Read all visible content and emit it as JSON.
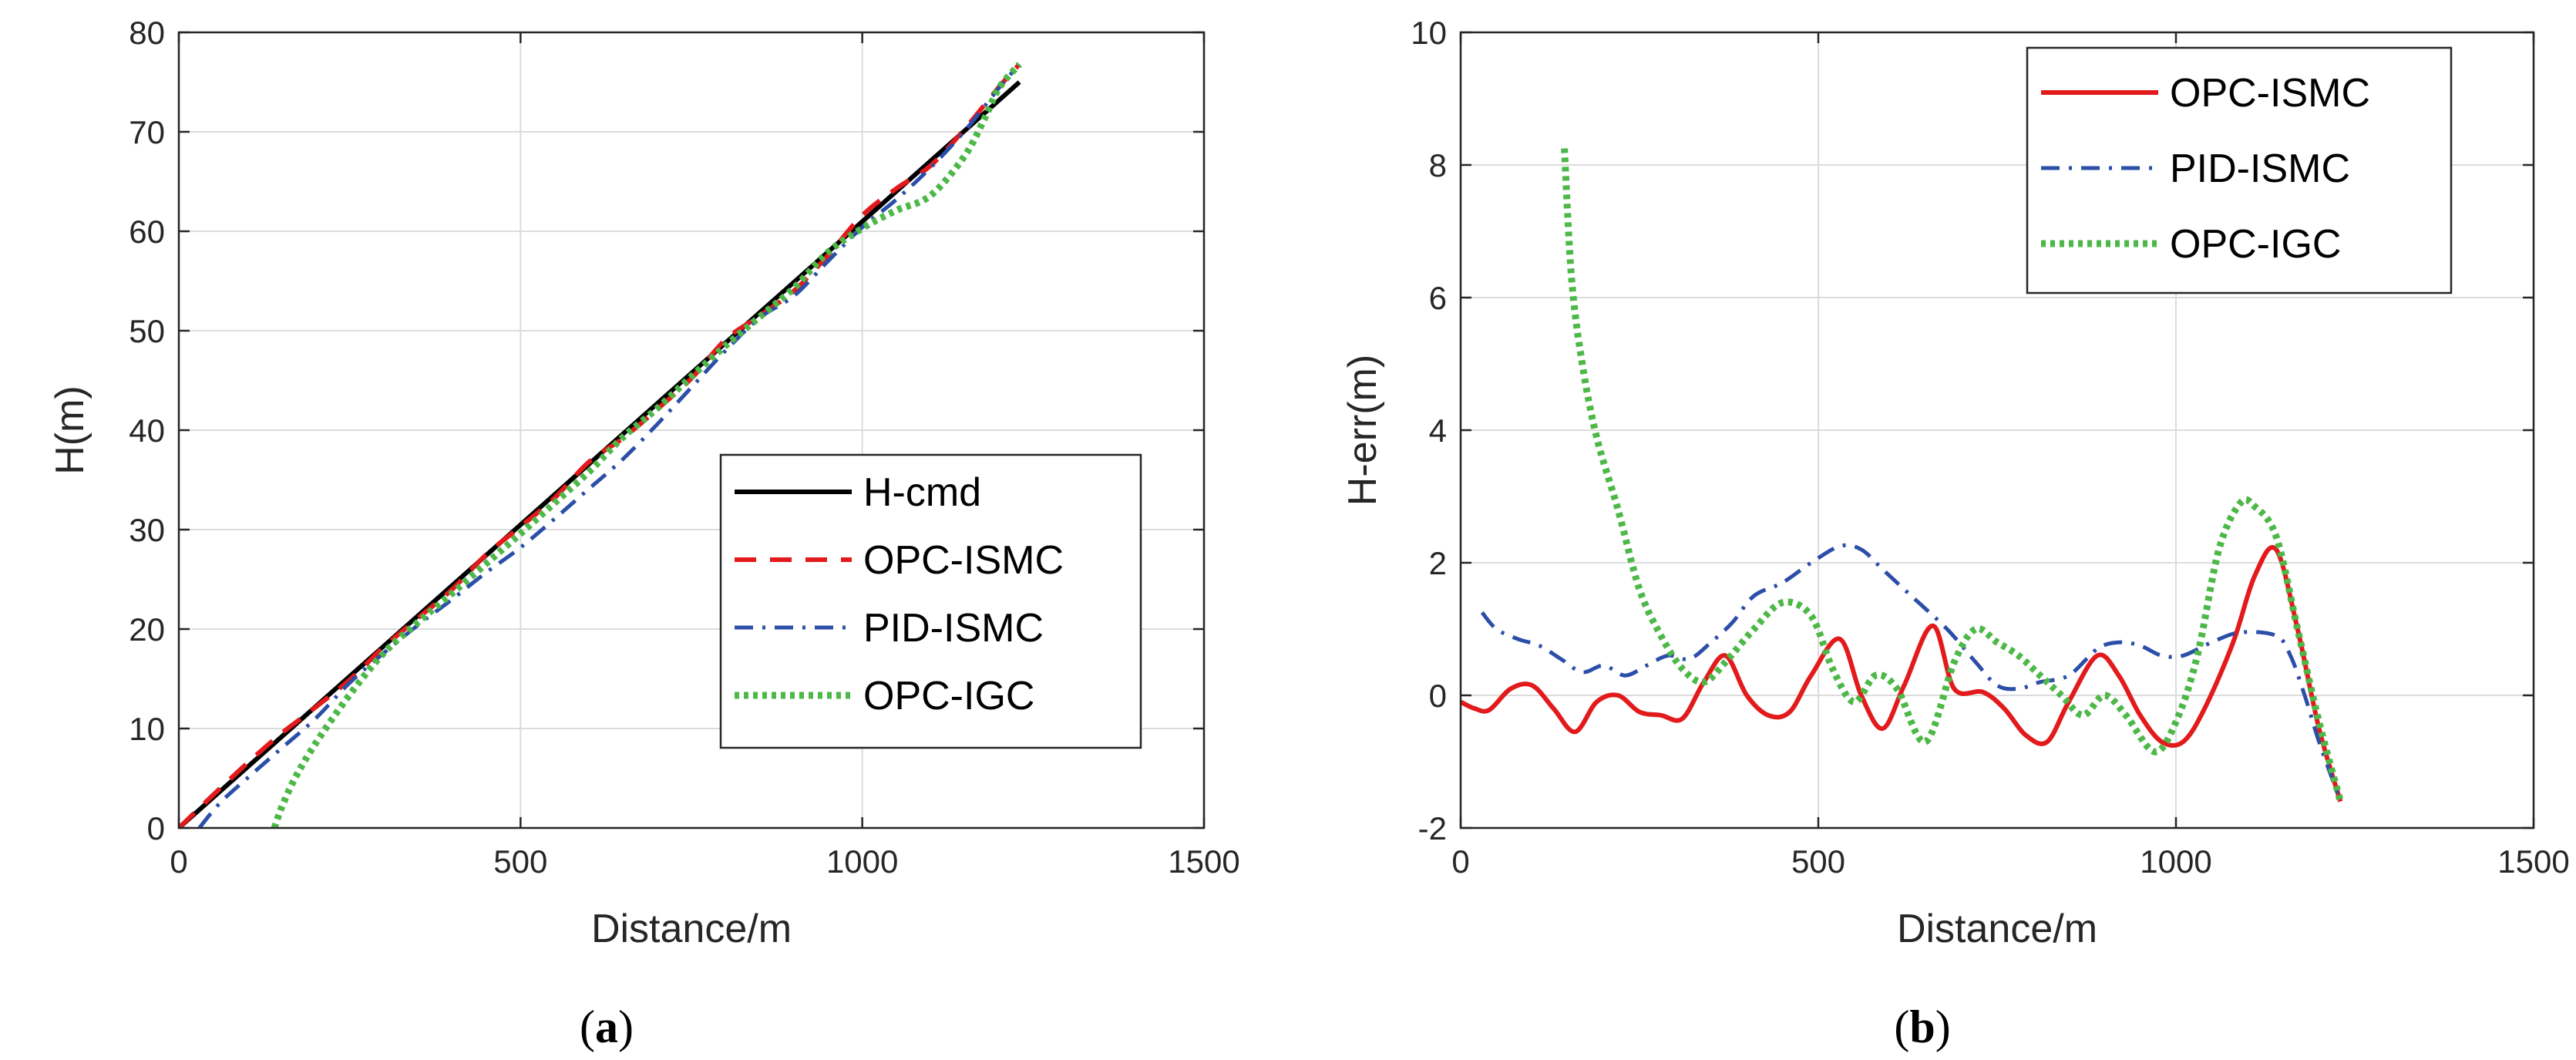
{
  "chart_data": [
    {
      "type": "line",
      "caption_open": "(",
      "caption_letter": "a",
      "caption_close": ")",
      "xlabel": "Distance/m",
      "ylabel": "H(m)",
      "xlim": [
        0,
        1500
      ],
      "ylim": [
        0,
        80
      ],
      "xticks": [
        0,
        500,
        1000,
        1500
      ],
      "yticks": [
        0,
        10,
        20,
        30,
        40,
        50,
        60,
        70,
        80
      ],
      "grid": true,
      "legend_position": "lower-right",
      "series": [
        {
          "name": "H-cmd",
          "color": "#000000",
          "style": "solid",
          "x": [
            0,
            1230
          ],
          "y": [
            0,
            75
          ]
        },
        {
          "name": "OPC-ISMC",
          "color": "#e31a1c",
          "style": "dashed",
          "x": [
            0,
            50,
            100,
            150,
            190,
            250,
            300,
            350,
            400,
            450,
            500,
            550,
            600,
            650,
            700,
            750,
            800,
            850,
            900,
            950,
            1000,
            1050,
            1100,
            1150,
            1200,
            1230
          ],
          "y": [
            0,
            3.3,
            6.5,
            9.5,
            11.6,
            14.9,
            18.2,
            21.1,
            24.0,
            27.5,
            30.3,
            33.2,
            36.8,
            39.2,
            42.1,
            45.2,
            49.1,
            51.5,
            54.0,
            57.6,
            61.6,
            64.3,
            66.6,
            70.3,
            74.5,
            76.8
          ]
        },
        {
          "name": "PID-ISMC",
          "color": "#2b4ea8",
          "style": "dashdot",
          "x": [
            30,
            60,
            100,
            150,
            200,
            250,
            300,
            350,
            400,
            450,
            500,
            550,
            600,
            650,
            700,
            750,
            800,
            850,
            900,
            950,
            1000,
            1050,
            1100,
            1150,
            1200,
            1230
          ],
          "y": [
            0,
            2.5,
            5.0,
            8.0,
            11.0,
            14.6,
            17.6,
            20.4,
            23.0,
            25.7,
            28.2,
            31.1,
            34.1,
            37.1,
            40.6,
            44.3,
            48.0,
            51.3,
            53.5,
            57.0,
            60.4,
            63.2,
            66.4,
            70.1,
            74.4,
            76.8
          ]
        },
        {
          "name": "OPC-IGC",
          "color": "#4db848",
          "style": "dotted",
          "x": [
            140,
            150,
            170,
            200,
            250,
            300,
            350,
            400,
            450,
            500,
            550,
            600,
            650,
            700,
            750,
            800,
            850,
            900,
            950,
            1000,
            1050,
            1100,
            1150,
            1180,
            1200,
            1230
          ],
          "y": [
            0,
            2.0,
            5.0,
            8.5,
            13.4,
            17.6,
            20.7,
            23.6,
            26.6,
            29.6,
            32.7,
            35.8,
            39.3,
            42.2,
            45.4,
            48.5,
            51.4,
            54.3,
            57.9,
            60.3,
            62.1,
            63.6,
            67.6,
            71.5,
            74.4,
            76.8
          ]
        }
      ]
    },
    {
      "type": "line",
      "caption_open": "(",
      "caption_letter": "b",
      "caption_close": ")",
      "xlabel": "Distance/m",
      "ylabel": "H-err(m)",
      "xlim": [
        0,
        1500
      ],
      "ylim": [
        -2,
        10
      ],
      "xticks": [
        0,
        500,
        1000,
        1500
      ],
      "yticks": [
        -2,
        0,
        2,
        4,
        6,
        8,
        10
      ],
      "grid": true,
      "legend_position": "top-right",
      "series": [
        {
          "name": "OPC-ISMC",
          "color": "#e31a1c",
          "style": "solid",
          "x": [
            0,
            20,
            40,
            70,
            100,
            130,
            160,
            190,
            220,
            250,
            280,
            310,
            340,
            370,
            400,
            430,
            460,
            490,
            530,
            560,
            590,
            620,
            660,
            690,
            730,
            760,
            790,
            820,
            850,
            890,
            920,
            950,
            980,
            1010,
            1040,
            1080,
            1110,
            1140,
            1170,
            1200,
            1230
          ],
          "y": [
            -0.1,
            -0.2,
            -0.22,
            0.1,
            0.15,
            -0.2,
            -0.55,
            -0.1,
            0.0,
            -0.25,
            -0.3,
            -0.35,
            0.2,
            0.6,
            0.0,
            -0.3,
            -0.25,
            0.3,
            0.85,
            0.0,
            -0.5,
            0.15,
            1.05,
            0.1,
            0.05,
            -0.2,
            -0.6,
            -0.7,
            -0.1,
            0.6,
            0.3,
            -0.3,
            -0.7,
            -0.7,
            -0.2,
            0.8,
            1.8,
            2.2,
            1.0,
            -0.5,
            -1.6
          ]
        },
        {
          "name": "PID-ISMC",
          "color": "#2b4ea8",
          "style": "dashdot",
          "x": [
            30,
            50,
            80,
            110,
            140,
            170,
            200,
            230,
            260,
            290,
            320,
            350,
            380,
            410,
            450,
            490,
            530,
            560,
            590,
            630,
            680,
            720,
            750,
            780,
            810,
            850,
            890,
            920,
            950,
            980,
            1010,
            1050,
            1090,
            1140,
            1160,
            1180,
            1200,
            1230
          ],
          "y": [
            1.25,
            1.0,
            0.85,
            0.75,
            0.55,
            0.35,
            0.45,
            0.3,
            0.45,
            0.6,
            0.55,
            0.8,
            1.1,
            1.5,
            1.7,
            2.0,
            2.25,
            2.2,
            1.9,
            1.5,
            1.0,
            0.5,
            0.15,
            0.1,
            0.2,
            0.3,
            0.7,
            0.8,
            0.75,
            0.6,
            0.6,
            0.8,
            0.95,
            0.9,
            0.6,
            0.0,
            -0.7,
            -1.6
          ]
        },
        {
          "name": "OPC-IGC",
          "color": "#4db848",
          "style": "dotted",
          "x": [
            145,
            155,
            170,
            190,
            220,
            250,
            280,
            310,
            340,
            370,
            410,
            450,
            490,
            520,
            550,
            580,
            610,
            650,
            690,
            720,
            750,
            780,
            810,
            840,
            870,
            900,
            930,
            970,
            1000,
            1030,
            1060,
            1090,
            1110,
            1140,
            1170,
            1200,
            1230
          ],
          "y": [
            8.25,
            6.3,
            5.0,
            3.9,
            2.8,
            1.6,
            0.9,
            0.4,
            0.2,
            0.5,
            1.0,
            1.4,
            1.2,
            0.4,
            -0.1,
            0.3,
            0.1,
            -0.7,
            0.5,
            1.0,
            0.8,
            0.6,
            0.3,
            0.0,
            -0.3,
            0.0,
            -0.3,
            -0.85,
            -0.4,
            0.6,
            2.2,
            2.9,
            2.85,
            2.4,
            1.0,
            -0.4,
            -1.6
          ]
        }
      ]
    }
  ]
}
